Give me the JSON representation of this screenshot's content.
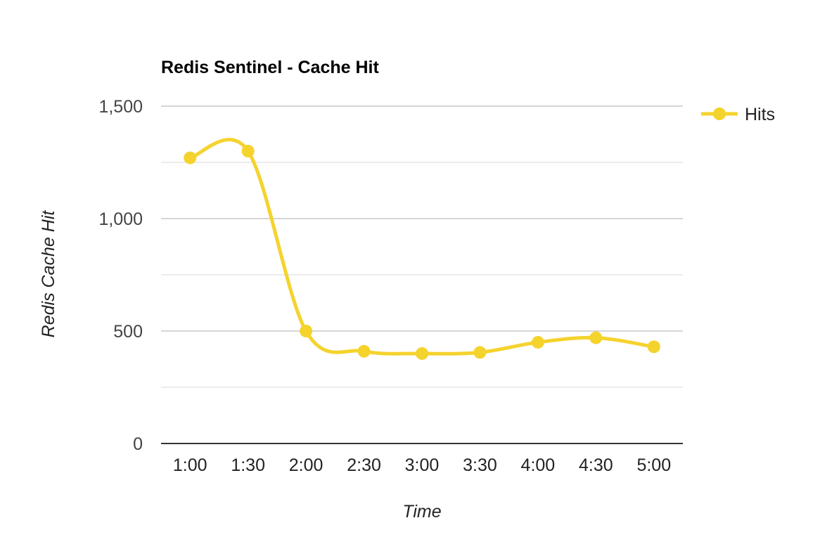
{
  "chart_data": {
    "type": "line",
    "title": "Redis Sentinel - Cache Hit",
    "xlabel": "Time",
    "ylabel": "Redis Cache Hit",
    "categories": [
      "1:00",
      "1:30",
      "2:00",
      "2:30",
      "3:00",
      "3:30",
      "4:00",
      "4:30",
      "5:00"
    ],
    "series": [
      {
        "name": "Hits",
        "color": "#f5d32d",
        "values": [
          1270,
          1300,
          500,
          410,
          400,
          405,
          450,
          470,
          430
        ]
      }
    ],
    "ylim": [
      0,
      1500
    ],
    "y_ticks": [
      {
        "value": 0,
        "label": "0"
      },
      {
        "value": 500,
        "label": "500"
      },
      {
        "value": 1000,
        "label": "1,000"
      },
      {
        "value": 1500,
        "label": "1,500"
      }
    ],
    "y_minor_ticks": [
      250,
      750,
      1250
    ],
    "smooth": true,
    "grid": true,
    "legend_position": "right"
  }
}
